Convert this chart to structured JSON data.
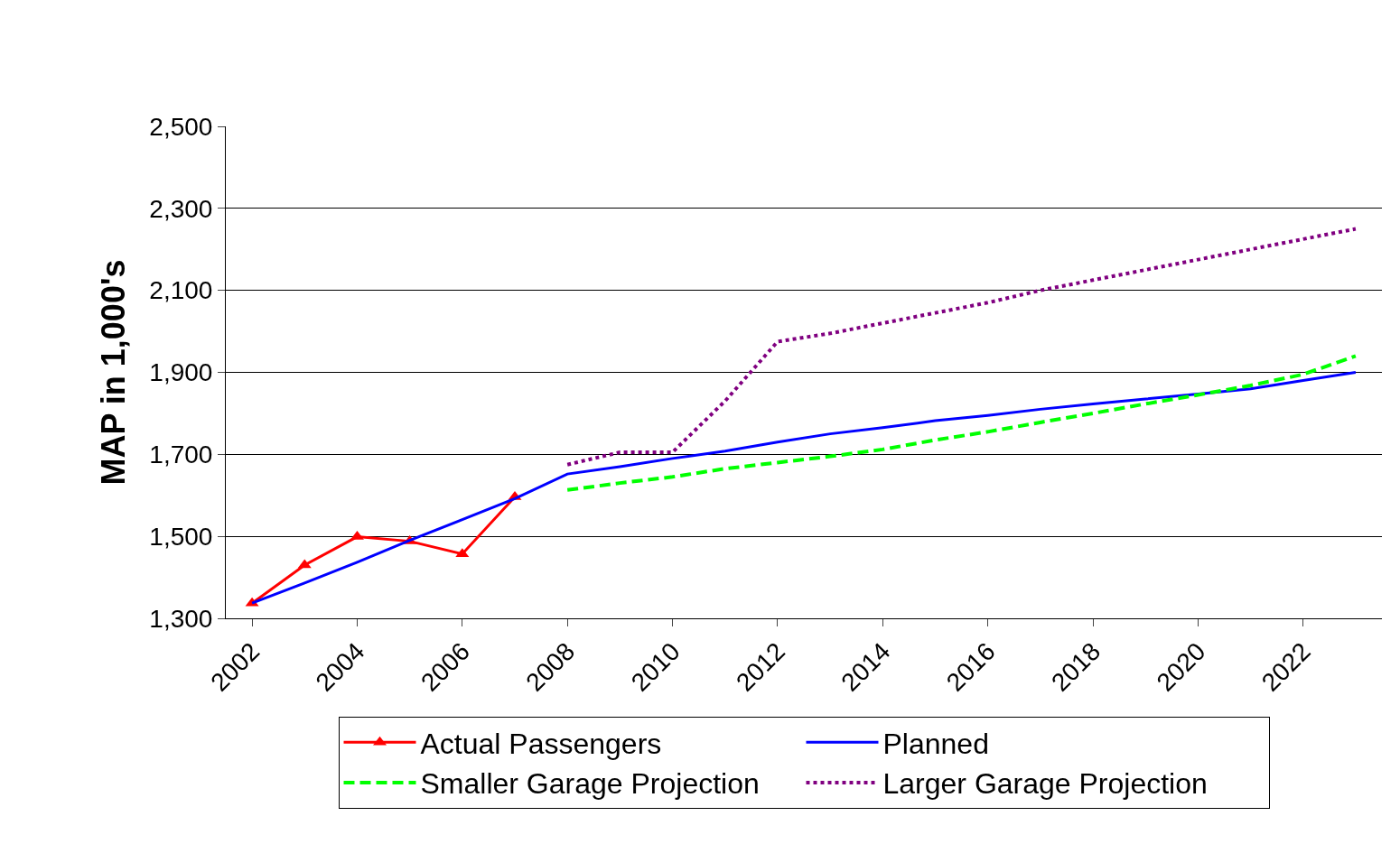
{
  "chart_data": {
    "type": "line",
    "ylabel": "MAP in 1,000's",
    "categories": [
      "2002",
      null,
      "2004",
      null,
      "2006",
      null,
      "2008",
      null,
      "2010",
      null,
      "2012",
      null,
      "2014",
      null,
      "2016",
      null,
      "2018",
      null,
      "2020",
      null,
      "2022",
      null
    ],
    "series": [
      {
        "name": "Actual Passengers",
        "color": "#ff0000",
        "marker": "triangle",
        "line_style": "solid",
        "values": [
          1337,
          1430,
          1499,
          1488,
          1457,
          1596,
          null,
          null,
          null,
          null,
          null,
          null,
          null,
          null,
          null,
          null,
          null,
          null,
          null,
          null,
          null,
          null
        ]
      },
      {
        "name": "Planned",
        "color": "#0000ff",
        "marker": "none",
        "line_style": "solid",
        "values": [
          1337,
          1386,
          1437,
          1490,
          1541,
          1592,
          1652,
          1670,
          1690,
          1708,
          1730,
          1750,
          1765,
          1782,
          1795,
          1810,
          1823,
          1835,
          1847,
          1860,
          1880,
          1900
        ]
      },
      {
        "name": "Smaller Garage Projection",
        "color": "#00ff00",
        "marker": "none",
        "line_style": "dashed",
        "values": [
          null,
          null,
          null,
          null,
          null,
          null,
          1613,
          1630,
          1645,
          1665,
          1680,
          1695,
          1712,
          1735,
          1755,
          1778,
          1800,
          1823,
          1845,
          1868,
          1895,
          1940
        ]
      },
      {
        "name": "Larger Garage Projection",
        "color": "#800080",
        "marker": "none",
        "line_style": "dotted",
        "values": [
          null,
          null,
          null,
          null,
          null,
          null,
          1675,
          1705,
          1705,
          1830,
          1975,
          1995,
          2020,
          2045,
          2070,
          2100,
          2125,
          2150,
          2175,
          2200,
          2225,
          2250
        ]
      }
    ],
    "ylim": [
      1300,
      2500
    ],
    "yticks": [
      {
        "value": 1300,
        "label": "1,300"
      },
      {
        "value": 1500,
        "label": "1,500"
      },
      {
        "value": 1700,
        "label": "1,700"
      },
      {
        "value": 1900,
        "label": "1,900"
      },
      {
        "value": 2100,
        "label": "2,100"
      },
      {
        "value": 2300,
        "label": "2,300"
      },
      {
        "value": 2500,
        "label": "2,500"
      }
    ],
    "grid": "y",
    "legend": "bottom"
  }
}
